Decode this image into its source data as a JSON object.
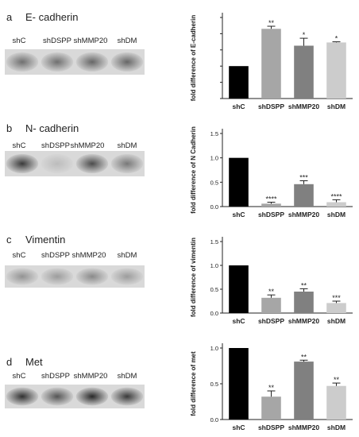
{
  "panels": [
    {
      "letter": "a",
      "title": "E- cadherin",
      "lanes": [
        "shC",
        "shDSPP",
        "shMMP20",
        "shDM"
      ],
      "blot_intensity": [
        0.55,
        0.55,
        0.6,
        0.6
      ]
    },
    {
      "letter": "b",
      "title": "N- cadherin",
      "lanes": [
        "shC",
        "shDSPP",
        "shMMP20",
        "shDM"
      ],
      "blot_intensity": [
        0.85,
        0.12,
        0.75,
        0.5
      ]
    },
    {
      "letter": "c",
      "title": "Vimentin",
      "lanes": [
        "shC",
        "shDSPP",
        "shMMP20",
        "shDM"
      ],
      "blot_intensity": [
        0.35,
        0.3,
        0.4,
        0.3
      ]
    },
    {
      "letter": "d",
      "title": "Met",
      "lanes": [
        "shC",
        "shDSPP",
        "shMMP20",
        "shDM"
      ],
      "blot_intensity": [
        0.9,
        0.7,
        0.95,
        0.85
      ]
    }
  ],
  "chart_data": [
    {
      "type": "bar",
      "categories": [
        "shC",
        "shDSPP",
        "shMMP20",
        "shDM"
      ],
      "values": [
        1.0,
        2.15,
        1.63,
        1.73
      ],
      "errors": [
        0,
        0.08,
        0.23,
        0.02
      ],
      "significance": [
        "",
        "**",
        "*",
        "*"
      ],
      "ylabel": "fold difference of E-cadherin",
      "ylim": [
        0,
        2.5
      ],
      "yticks": [],
      "colors": [
        "#000000",
        "#a6a6a6",
        "#808080",
        "#cccccc"
      ]
    },
    {
      "type": "bar",
      "categories": [
        "shC",
        "shDSPP",
        "shMMP20",
        "shDM"
      ],
      "values": [
        1.0,
        0.06,
        0.46,
        0.09
      ],
      "errors": [
        0,
        0.03,
        0.07,
        0.05
      ],
      "significance": [
        "",
        "****",
        "***",
        "****"
      ],
      "ylabel": "fold difference of N Cadherin",
      "ylim": [
        0,
        1.5
      ],
      "yticks": [
        "0.0",
        "0.5",
        "1.0",
        "1.5"
      ],
      "colors": [
        "#000000",
        "#a6a6a6",
        "#808080",
        "#cccccc"
      ]
    },
    {
      "type": "bar",
      "categories": [
        "shC",
        "shDSPP",
        "shMMP20",
        "shDM"
      ],
      "values": [
        1.0,
        0.32,
        0.45,
        0.21
      ],
      "errors": [
        0,
        0.06,
        0.06,
        0.04
      ],
      "significance": [
        "",
        "**",
        "**",
        "***"
      ],
      "ylabel": "fold difference of vimentin",
      "ylim": [
        0,
        1.5
      ],
      "yticks": [
        "0.0",
        "0.5",
        "1.0",
        "1.5"
      ],
      "colors": [
        "#000000",
        "#a6a6a6",
        "#808080",
        "#cccccc"
      ]
    },
    {
      "type": "bar",
      "categories": [
        "shC",
        "shDSPP",
        "shMMP20",
        "shDM"
      ],
      "values": [
        1.0,
        0.32,
        0.81,
        0.47
      ],
      "errors": [
        0,
        0.08,
        0.02,
        0.04
      ],
      "significance": [
        "",
        "**",
        "**",
        "**"
      ],
      "ylabel": "fold difference of met",
      "ylim": [
        0,
        1.0
      ],
      "yticks": [
        "0.0",
        "0.5",
        "1.0"
      ],
      "colors": [
        "#000000",
        "#a6a6a6",
        "#808080",
        "#cccccc"
      ]
    }
  ]
}
